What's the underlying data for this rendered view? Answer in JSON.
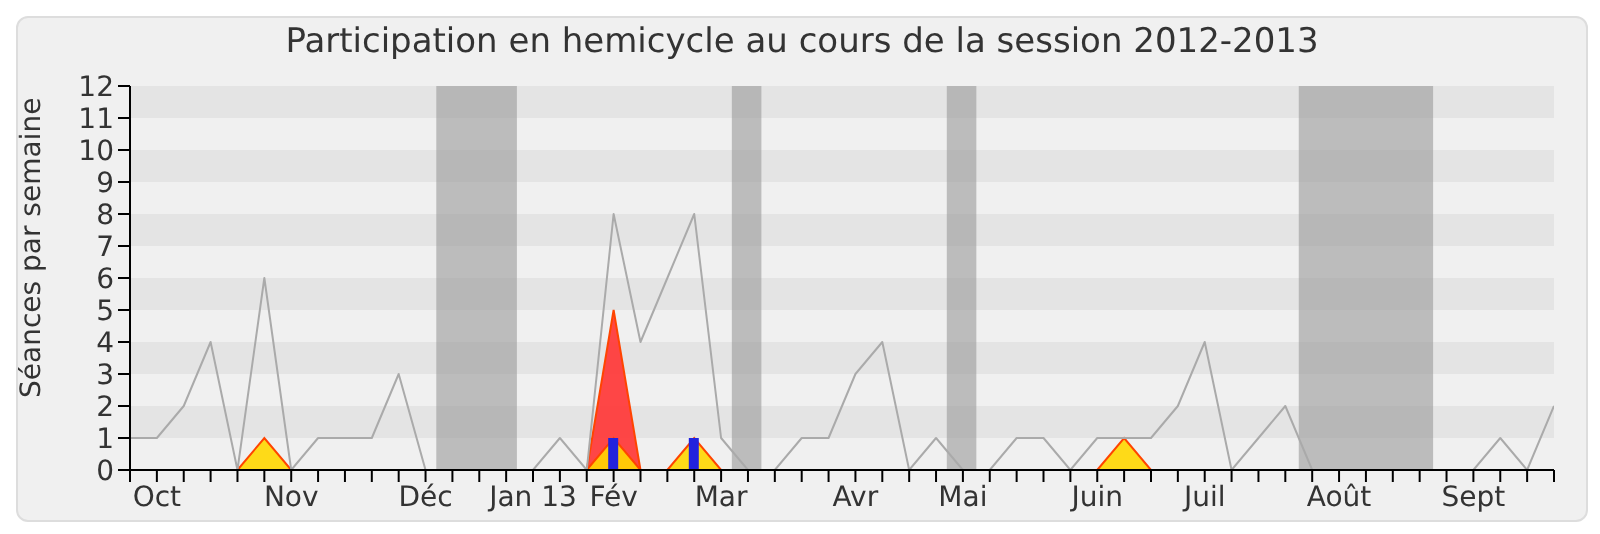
{
  "chart_data": {
    "type": "line",
    "title": "Participation en hemicycle au cours de la session 2012-2013",
    "ylabel": "Séances par semaine",
    "categories": [
      null,
      "Oct",
      null,
      null,
      null,
      null,
      "Nov",
      null,
      null,
      null,
      null,
      "Déc",
      null,
      null,
      null,
      "Jan 13",
      null,
      null,
      "Fév",
      null,
      null,
      null,
      "Mar",
      null,
      null,
      null,
      null,
      "Avr",
      null,
      null,
      null,
      "Mai",
      null,
      null,
      null,
      null,
      "Juin",
      null,
      null,
      null,
      "Juil",
      null,
      null,
      null,
      null,
      "Août",
      null,
      null,
      null,
      null,
      "Sept",
      null,
      null,
      null
    ],
    "series": [
      {
        "color": "#aaaaaa",
        "values": [
          1,
          1,
          2,
          4,
          0,
          6,
          0,
          1,
          1,
          1,
          3,
          0,
          0,
          0,
          0,
          0,
          1,
          0,
          8,
          4,
          6,
          8,
          1,
          0,
          0,
          1,
          1,
          3,
          4,
          0,
          1,
          0,
          0,
          1,
          1,
          0,
          1,
          1,
          1,
          2,
          4,
          0,
          1,
          2,
          0,
          0,
          0,
          0,
          0,
          0,
          0,
          1,
          0,
          2
        ]
      },
      {
        "type": "area",
        "color": "#ff3333",
        "values": [
          0,
          0,
          0,
          0,
          0,
          0,
          0,
          0,
          0,
          0,
          0,
          0,
          0,
          0,
          0,
          0,
          0,
          0,
          5,
          0,
          0,
          0,
          0,
          0,
          0,
          0,
          0,
          0,
          0,
          0,
          0,
          0,
          0,
          0,
          0,
          0,
          0,
          0,
          0,
          0,
          0,
          0,
          0,
          0,
          0,
          0,
          0,
          0,
          0,
          0,
          0,
          0,
          0,
          0
        ]
      },
      {
        "type": "area",
        "color": "#ffd700",
        "values": [
          0,
          0,
          0,
          0,
          0,
          1,
          0,
          0,
          0,
          0,
          0,
          0,
          0,
          0,
          0,
          0,
          0,
          0,
          1,
          0,
          0,
          1,
          0,
          0,
          0,
          0,
          0,
          0,
          0,
          0,
          0,
          0,
          0,
          0,
          0,
          0,
          0,
          1,
          0,
          0,
          0,
          0,
          0,
          0,
          0,
          0,
          0,
          0,
          0,
          0,
          0,
          0,
          0,
          0
        ]
      },
      {
        "type": "bar",
        "color": "#2222dd",
        "values": [
          0,
          0,
          0,
          0,
          0,
          0,
          0,
          0,
          0,
          0,
          0,
          0,
          0,
          0,
          0,
          0,
          0,
          0,
          1,
          0,
          0,
          1,
          0,
          0,
          0,
          0,
          0,
          0,
          0,
          0,
          0,
          0,
          0,
          0,
          0,
          0,
          0,
          0,
          0,
          0,
          0,
          0,
          0,
          0,
          0,
          0,
          0,
          0,
          0,
          0,
          0,
          0,
          0,
          0
        ]
      }
    ],
    "ylim": [
      0,
      12
    ],
    "yticks": [
      0,
      1,
      2,
      3,
      4,
      5,
      6,
      7,
      8,
      9,
      10,
      11,
      12
    ],
    "legend": false
  }
}
